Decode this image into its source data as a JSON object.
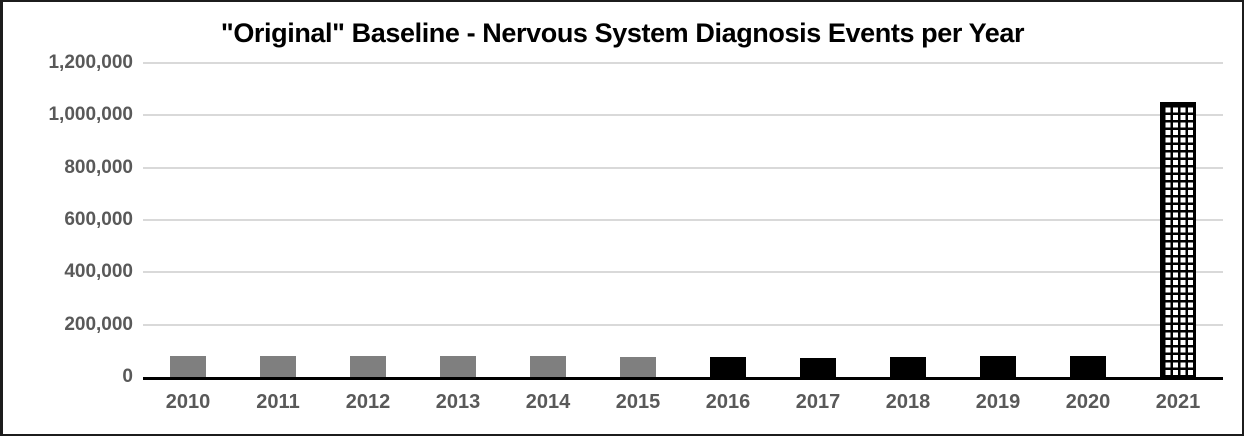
{
  "chart_data": {
    "type": "bar",
    "title": "\"Original\" Baseline - Nervous System Diagnosis Events per Year",
    "categories": [
      "2010",
      "2011",
      "2012",
      "2013",
      "2014",
      "2015",
      "2016",
      "2017",
      "2018",
      "2019",
      "2020",
      "2021"
    ],
    "values": [
      80000,
      80000,
      80000,
      80000,
      80000,
      78000,
      77000,
      74000,
      77000,
      82000,
      79000,
      1050000
    ],
    "bar_styles": [
      "gray",
      "gray",
      "gray",
      "gray",
      "gray",
      "gray",
      "black",
      "black",
      "black",
      "black",
      "black",
      "grid-pattern"
    ],
    "xlabel": "",
    "ylabel": "",
    "ylim": [
      0,
      1200000
    ],
    "ytick_values": [
      0,
      200000,
      400000,
      600000,
      800000,
      1000000,
      1200000
    ],
    "ytick_labels": [
      "0",
      "200,000",
      "400,000",
      "600,000",
      "800,000",
      "1,000,000",
      "1,200,000"
    ],
    "grid": "horizontal",
    "legend": "none",
    "colors": {
      "gray_bar": "#7f7f7f",
      "black_bar": "#000000",
      "pattern_bar_fill": "#ffffff",
      "pattern_bar_line": "#000000",
      "axis_label": "#595959",
      "gridline": "#d9d9d9",
      "axis_line": "#000000",
      "title": "#000000"
    }
  }
}
